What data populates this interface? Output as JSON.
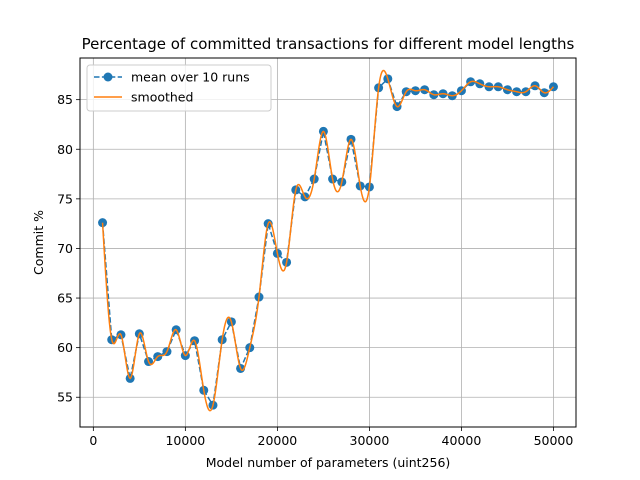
{
  "chart_data": {
    "type": "line",
    "title": "Percentage of committed transactions for different model lengths",
    "xlabel": "Model number of parameters (uint256)",
    "ylabel": "Commit %",
    "xlim": [
      -1450,
      52450
    ],
    "ylim": [
      52.0,
      89.2
    ],
    "xticks": [
      0,
      10000,
      20000,
      30000,
      40000,
      50000
    ],
    "yticks": [
      55,
      60,
      65,
      70,
      75,
      80,
      85
    ],
    "grid": true,
    "legend_position": "top-left",
    "colors": {
      "mean": "#1f77b4",
      "smoothed": "#ff7f0e"
    },
    "x": [
      1000,
      2000,
      3000,
      4000,
      5000,
      6000,
      7000,
      8000,
      9000,
      10000,
      11000,
      12000,
      13000,
      14000,
      15000,
      16000,
      17000,
      18000,
      19000,
      20000,
      21000,
      22000,
      23000,
      24000,
      25000,
      26000,
      27000,
      28000,
      29000,
      30000,
      31000,
      32000,
      33000,
      34000,
      35000,
      36000,
      37000,
      38000,
      39000,
      40000,
      41000,
      42000,
      43000,
      44000,
      45000,
      46000,
      47000,
      48000,
      49000,
      50000
    ],
    "series": [
      {
        "name": "mean over 10 runs",
        "style": "dashed-markers",
        "values": [
          72.6,
          60.8,
          61.3,
          56.9,
          61.4,
          58.6,
          59.1,
          59.6,
          61.8,
          59.2,
          60.7,
          55.7,
          54.2,
          60.8,
          62.6,
          57.9,
          60.0,
          65.1,
          72.5,
          69.5,
          68.6,
          75.9,
          75.2,
          77.0,
          81.8,
          77.0,
          76.7,
          81.0,
          76.3,
          76.2,
          86.2,
          87.1,
          84.3,
          85.8,
          85.9,
          86.0,
          85.5,
          85.6,
          85.4,
          85.9,
          86.8,
          86.6,
          86.3,
          86.3,
          86.0,
          85.8,
          85.8,
          86.4,
          85.7,
          86.3
        ]
      },
      {
        "name": "smoothed",
        "style": "solid"
      }
    ]
  }
}
